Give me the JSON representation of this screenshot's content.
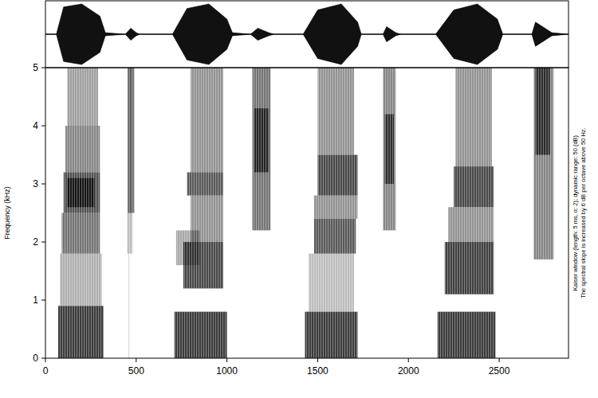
{
  "chart_data": {
    "type": "heatmap",
    "y_label": "Frequency (kHz)",
    "annotations": [
      "Kaiser window (length: 5 ms, α: 2); dynamic range: 50 (dB)",
      "The spectral slope is increased by 6 dB per octave above 50 Hz."
    ],
    "xlim": [
      0,
      2882
    ],
    "xticks": [
      0,
      500,
      1000,
      1500,
      2000,
      2500
    ],
    "ylim": [
      0,
      5
    ],
    "yticks": [
      0,
      1,
      2,
      3,
      4,
      5
    ],
    "zlim": [
      0,
      50
    ],
    "cells": [
      [
        70,
        320,
        0,
        0.9,
        45
      ],
      [
        80,
        310,
        0.9,
        1.8,
        18
      ],
      [
        90,
        300,
        1.8,
        2.5,
        32
      ],
      [
        100,
        300,
        2.5,
        3.2,
        40
      ],
      [
        110,
        300,
        3.2,
        4.0,
        28
      ],
      [
        120,
        290,
        4.0,
        5.0,
        22
      ],
      [
        120,
        270,
        2.6,
        3.1,
        44
      ],
      [
        450,
        480,
        1.8,
        5,
        15
      ],
      [
        455,
        490,
        2.5,
        5,
        30
      ],
      [
        458,
        462,
        0,
        1.8,
        12
      ],
      [
        710,
        1000,
        0,
        0.8,
        45
      ],
      [
        720,
        850,
        1.6,
        2.2,
        20
      ],
      [
        760,
        980,
        1.2,
        2.0,
        42
      ],
      [
        800,
        980,
        2.0,
        2.8,
        25
      ],
      [
        780,
        980,
        2.8,
        3.2,
        38
      ],
      [
        800,
        980,
        3.2,
        5,
        25
      ],
      [
        1140,
        1240,
        2.2,
        5,
        32
      ],
      [
        1150,
        1230,
        3.2,
        4.3,
        40
      ],
      [
        1430,
        1720,
        0,
        0.8,
        45
      ],
      [
        1450,
        1700,
        0.8,
        1.8,
        15
      ],
      [
        1480,
        1710,
        1.8,
        2.4,
        38
      ],
      [
        1480,
        1720,
        2.4,
        2.8,
        25
      ],
      [
        1500,
        1720,
        2.8,
        3.5,
        42
      ],
      [
        1500,
        1700,
        3.5,
        5,
        25
      ],
      [
        1860,
        1930,
        2.2,
        5,
        28
      ],
      [
        1870,
        1920,
        3.0,
        4.2,
        38
      ],
      [
        2160,
        2480,
        0,
        0.8,
        45
      ],
      [
        2200,
        2470,
        1.1,
        2.0,
        44
      ],
      [
        2220,
        2470,
        2.0,
        2.6,
        25
      ],
      [
        2250,
        2470,
        2.6,
        3.3,
        42
      ],
      [
        2260,
        2460,
        3.3,
        5,
        25
      ],
      [
        2690,
        2800,
        1.7,
        5,
        28
      ],
      [
        2700,
        2780,
        3.5,
        5,
        40
      ]
    ],
    "waveform": {
      "ylim": [
        -1,
        1
      ],
      "x": [
        0,
        60,
        100,
        200,
        300,
        330,
        440,
        470,
        500,
        520,
        700,
        780,
        900,
        1000,
        1030,
        1130,
        1170,
        1230,
        1260,
        1420,
        1500,
        1630,
        1720,
        1740,
        1860,
        1880,
        1930,
        1960,
        2150,
        2250,
        2380,
        2490,
        2520,
        2680,
        2700,
        2790,
        2882
      ],
      "values": [
        0,
        0,
        0.9,
        1,
        0.6,
        0.05,
        0,
        0.2,
        0.05,
        0,
        0,
        0.85,
        1,
        0.5,
        0.05,
        0,
        0.2,
        0.05,
        0,
        0,
        0.8,
        1,
        0.4,
        0,
        0,
        0.25,
        0.05,
        0,
        0,
        0.8,
        1,
        0.5,
        0,
        0,
        0.4,
        0.05,
        0
      ]
    }
  }
}
